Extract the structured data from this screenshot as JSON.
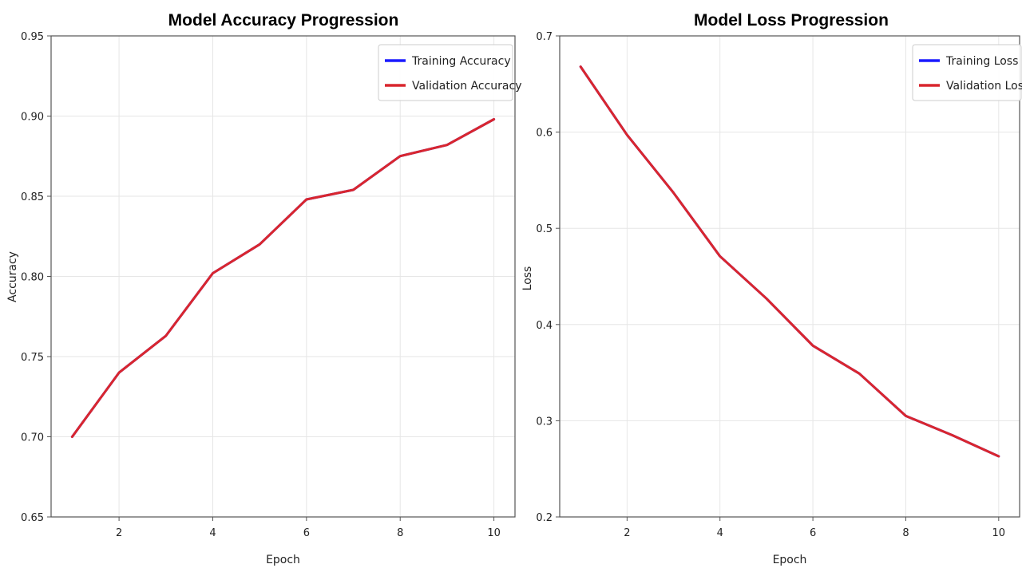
{
  "chart_data": [
    {
      "type": "line",
      "title": "Model Accuracy Progression",
      "xlabel": "Epoch",
      "ylabel": "Accuracy",
      "xlim": [
        0.55,
        10.45
      ],
      "ylim": [
        0.65,
        0.95
      ],
      "xticks": [
        2,
        4,
        6,
        8,
        10
      ],
      "yticks": [
        0.65,
        0.7,
        0.75,
        0.8,
        0.85,
        0.9,
        0.95
      ],
      "ytick_labels": [
        "0.65",
        "0.70",
        "0.75",
        "0.80",
        "0.85",
        "0.90",
        "0.95"
      ],
      "grid": true,
      "legend_position": "top-right",
      "x": [
        1,
        2,
        3,
        4,
        5,
        6,
        7,
        8,
        9,
        10
      ],
      "series": [
        {
          "name": "Training Accuracy",
          "color": "#1a1aff",
          "values": [
            0.7,
            0.74,
            0.763,
            0.802,
            0.82,
            0.848,
            0.854,
            0.875,
            0.882,
            0.898
          ]
        },
        {
          "name": "Validation Accuracy",
          "color": "#d9262e",
          "values": [
            0.7,
            0.74,
            0.763,
            0.802,
            0.82,
            0.848,
            0.854,
            0.875,
            0.882,
            0.898
          ]
        }
      ]
    },
    {
      "type": "line",
      "title": "Model Loss Progression",
      "xlabel": "Epoch",
      "ylabel": "Loss",
      "xlim": [
        0.55,
        10.45
      ],
      "ylim": [
        0.2,
        0.7
      ],
      "xticks": [
        2,
        4,
        6,
        8,
        10
      ],
      "yticks": [
        0.2,
        0.3,
        0.4,
        0.5,
        0.6,
        0.7
      ],
      "ytick_labels": [
        "0.2",
        "0.3",
        "0.4",
        "0.5",
        "0.6",
        "0.7"
      ],
      "grid": true,
      "legend_position": "top-right",
      "x": [
        1,
        2,
        3,
        4,
        5,
        6,
        7,
        8,
        9,
        10
      ],
      "series": [
        {
          "name": "Training Loss",
          "color": "#1a1aff",
          "values": [
            0.668,
            0.597,
            0.537,
            0.471,
            0.427,
            0.378,
            0.349,
            0.305,
            0.285,
            0.263
          ]
        },
        {
          "name": "Validation Loss",
          "color": "#d9262e",
          "values": [
            0.668,
            0.597,
            0.537,
            0.471,
            0.427,
            0.378,
            0.349,
            0.305,
            0.285,
            0.263
          ]
        }
      ]
    }
  ]
}
